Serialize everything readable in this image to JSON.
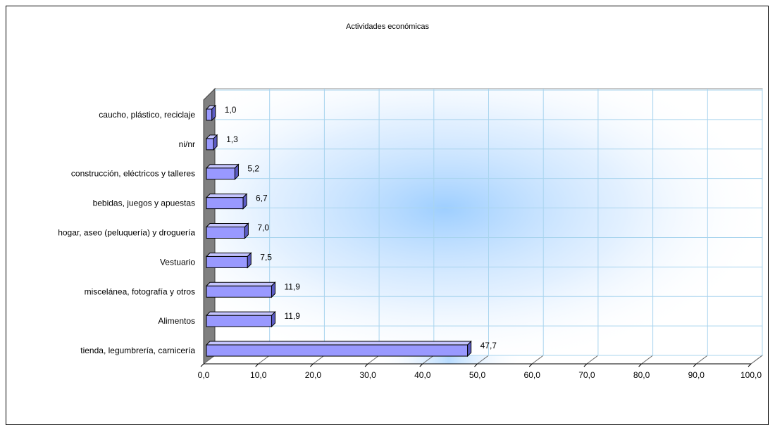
{
  "chart_data": {
    "type": "bar",
    "orientation": "horizontal",
    "three_d": true,
    "title": "Actividades económicas",
    "xlabel": "",
    "ylabel": "",
    "xlim": [
      0,
      100
    ],
    "x_ticks": [
      "0,0",
      "10,0",
      "20,0",
      "30,0",
      "40,0",
      "50,0",
      "60,0",
      "70,0",
      "80,0",
      "90,0",
      "100,0"
    ],
    "tick_values": [
      0,
      10,
      20,
      30,
      40,
      50,
      60,
      70,
      80,
      90,
      100
    ],
    "grid": true,
    "legend": "none",
    "categories": [
      "caucho, plástico, reciclaje",
      "ni/nr",
      "construcción, eléctricos y talleres",
      "bebidas, juegos y apuestas",
      "hogar, aseo (peluquería) y droguería",
      "Vestuario",
      "miscelánea, fotografía y otros",
      "Alimentos",
      "tienda, legumbrería, carnicería"
    ],
    "values": [
      1.0,
      1.3,
      5.2,
      6.7,
      7.0,
      7.5,
      11.9,
      11.9,
      47.7
    ],
    "value_labels": [
      "1,0",
      "1,3",
      "5,2",
      "6,7",
      "7,0",
      "7,5",
      "11,9",
      "11,9",
      "47,7"
    ],
    "colors": {
      "bar_front": "#9999ff",
      "bar_top": "#c4c4ff",
      "bar_side": "#5c5cc4",
      "bar_outline": "#000000",
      "gridline": "#a8d4ee",
      "backwall_glow": "#99ccff",
      "sidewall": "#808080"
    }
  }
}
